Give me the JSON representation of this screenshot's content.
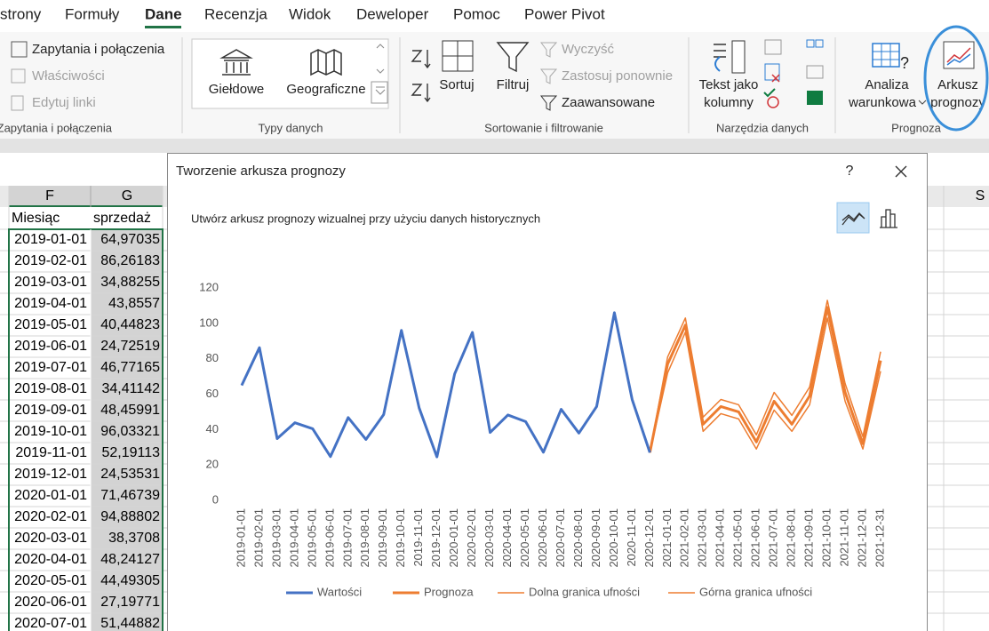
{
  "ribbon": {
    "tabs": [
      "strony",
      "Formuły",
      "Dane",
      "Recenzja",
      "Widok",
      "Deweloper",
      "Pomoc",
      "Power Pivot"
    ],
    "buttons": [
      "Zapytania i połączenia",
      "Właściwości",
      "Edytuj linki",
      "Giełdowe",
      "Geograficzne",
      "Sortuj",
      "Filtruj",
      "Wyczyść",
      "Zastosuj ponownie",
      "Zaawansowane",
      "Tekst jako",
      "kolumny",
      "Analiza",
      "warunkowa",
      "Arkusz",
      "prognozy"
    ],
    "groups": [
      "Zapytania i połączenia",
      "Typy danych",
      "Sortowanie i filtrowanie",
      "Narzędzia danych",
      "Prognoza"
    ]
  },
  "sheet": {
    "columns": [
      "F",
      "G",
      "S"
    ],
    "header": [
      "Miesiąc",
      "sprzedaż"
    ],
    "rows": [
      [
        "2019-01-01",
        "64,97035"
      ],
      [
        "2019-02-01",
        "86,26183"
      ],
      [
        "2019-03-01",
        "34,88255"
      ],
      [
        "2019-04-01",
        "43,8557"
      ],
      [
        "2019-05-01",
        "40,44823"
      ],
      [
        "2019-06-01",
        "24,72519"
      ],
      [
        "2019-07-01",
        "46,77165"
      ],
      [
        "2019-08-01",
        "34,41142"
      ],
      [
        "2019-09-01",
        "48,45991"
      ],
      [
        "2019-10-01",
        "96,03321"
      ],
      [
        "2019-11-01",
        "52,19113"
      ],
      [
        "2019-12-01",
        "24,53531"
      ],
      [
        "2020-01-01",
        "71,46739"
      ],
      [
        "2020-02-01",
        "94,88802"
      ],
      [
        "2020-03-01",
        "38,3708"
      ],
      [
        "2020-04-01",
        "48,24127"
      ],
      [
        "2020-05-01",
        "44,49305"
      ],
      [
        "2020-06-01",
        "27,19771"
      ],
      [
        "2020-07-01",
        "51,44882"
      ]
    ]
  },
  "dialog": {
    "title": "Tworzenie arkusza prognozy",
    "help": "?",
    "subtitle": "Utwórz arkusz prognozy wizualnej przy użyciu danych historycznych"
  },
  "chart_data": {
    "type": "line",
    "categories": [
      "2019-01-01",
      "2019-02-01",
      "2019-03-01",
      "2019-04-01",
      "2019-05-01",
      "2019-06-01",
      "2019-07-01",
      "2019-08-01",
      "2019-09-01",
      "2019-10-01",
      "2019-11-01",
      "2019-12-01",
      "2020-01-01",
      "2020-02-01",
      "2020-03-01",
      "2020-04-01",
      "2020-05-01",
      "2020-06-01",
      "2020-07-01",
      "2020-08-01",
      "2020-09-01",
      "2020-10-01",
      "2020-11-01",
      "2020-12-01",
      "2021-01-01",
      "2021-02-01",
      "2021-03-01",
      "2021-04-01",
      "2021-05-01",
      "2021-06-01",
      "2021-07-01",
      "2021-08-01",
      "2021-09-01",
      "2021-10-01",
      "2021-11-01",
      "2021-12-01",
      "2021-12-31"
    ],
    "series": [
      {
        "name": "Wartości",
        "color": "#4472c4",
        "values": [
          64.97,
          86.26,
          34.88,
          43.86,
          40.45,
          24.73,
          46.77,
          34.41,
          48.46,
          96.03,
          52.19,
          24.54,
          71.47,
          94.89,
          38.37,
          48.24,
          44.49,
          27.2,
          51.45,
          38,
          53,
          106,
          57,
          27,
          null,
          null,
          null,
          null,
          null,
          null,
          null,
          null,
          null,
          null,
          null,
          null,
          null
        ]
      },
      {
        "name": "Prognoza",
        "color": "#ed7d31",
        "values": [
          null,
          null,
          null,
          null,
          null,
          null,
          null,
          null,
          null,
          null,
          null,
          null,
          null,
          null,
          null,
          null,
          null,
          null,
          null,
          null,
          null,
          null,
          null,
          27,
          77,
          99,
          43,
          53,
          50,
          33,
          56,
          43,
          59,
          109,
          61,
          32,
          79
        ]
      },
      {
        "name": "Dolna granica ufności",
        "color": "#ed7d31",
        "values": [
          null,
          null,
          null,
          null,
          null,
          null,
          null,
          null,
          null,
          null,
          null,
          null,
          null,
          null,
          null,
          null,
          null,
          null,
          null,
          null,
          null,
          null,
          null,
          27,
          72,
          95,
          39,
          49,
          46,
          29,
          51,
          39,
          54,
          103,
          56,
          29,
          73
        ]
      },
      {
        "name": "Górna granica ufności",
        "color": "#ed7d31",
        "values": [
          null,
          null,
          null,
          null,
          null,
          null,
          null,
          null,
          null,
          null,
          null,
          null,
          null,
          null,
          null,
          null,
          null,
          null,
          null,
          null,
          null,
          null,
          null,
          27,
          81,
          103,
          47,
          57,
          54,
          37,
          61,
          48,
          64,
          113,
          66,
          36,
          84
        ]
      }
    ],
    "ylim": [
      0,
      120
    ],
    "yticks": [
      0,
      20,
      40,
      60,
      80,
      100,
      120
    ],
    "grid": false,
    "legend": "bottom"
  }
}
